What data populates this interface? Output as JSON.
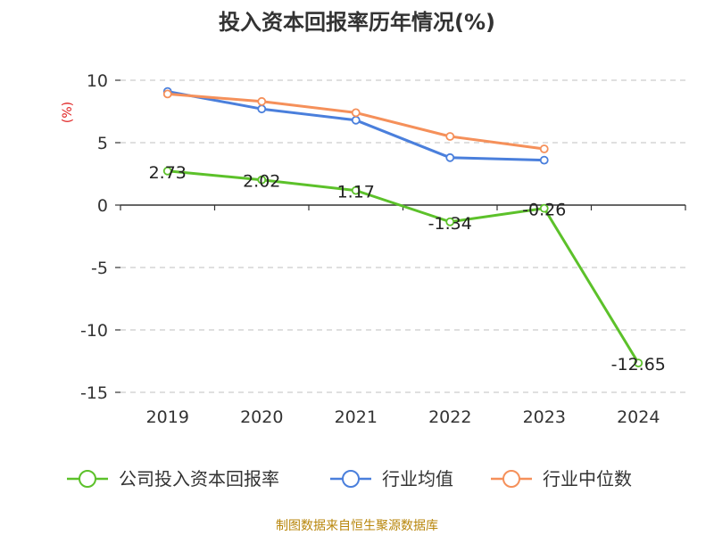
{
  "chart_data": {
    "type": "line",
    "title": "投入资本回报率历年情况(%)",
    "ylabel": "(%)",
    "xlabel": "",
    "categories": [
      "2019",
      "2020",
      "2021",
      "2022",
      "2023",
      "2024"
    ],
    "ylim": [
      -15,
      10
    ],
    "yticks": [
      10,
      5,
      0,
      -5,
      -10,
      -15
    ],
    "ytick_labels": [
      "10",
      "5",
      "0",
      "-5",
      "-10",
      "-15"
    ],
    "grid": true,
    "legend_position": "bottom",
    "series": [
      {
        "name": "公司投入资本回报率",
        "color": "#5cc12a",
        "values": [
          2.73,
          2.02,
          1.17,
          -1.34,
          -0.26,
          -12.65
        ],
        "labels": [
          "2.73",
          "2.02",
          "1.17",
          "-1.34",
          "-0.26",
          "-12.65"
        ]
      },
      {
        "name": "行业均值",
        "color": "#4a7fdc",
        "values": [
          9.1,
          7.7,
          6.8,
          3.8,
          3.6,
          null
        ]
      },
      {
        "name": "行业中位数",
        "color": "#f5905a",
        "values": [
          8.9,
          8.3,
          7.4,
          5.5,
          4.5,
          null
        ]
      }
    ]
  },
  "source_text": "制图数据来自恒生聚源数据库"
}
